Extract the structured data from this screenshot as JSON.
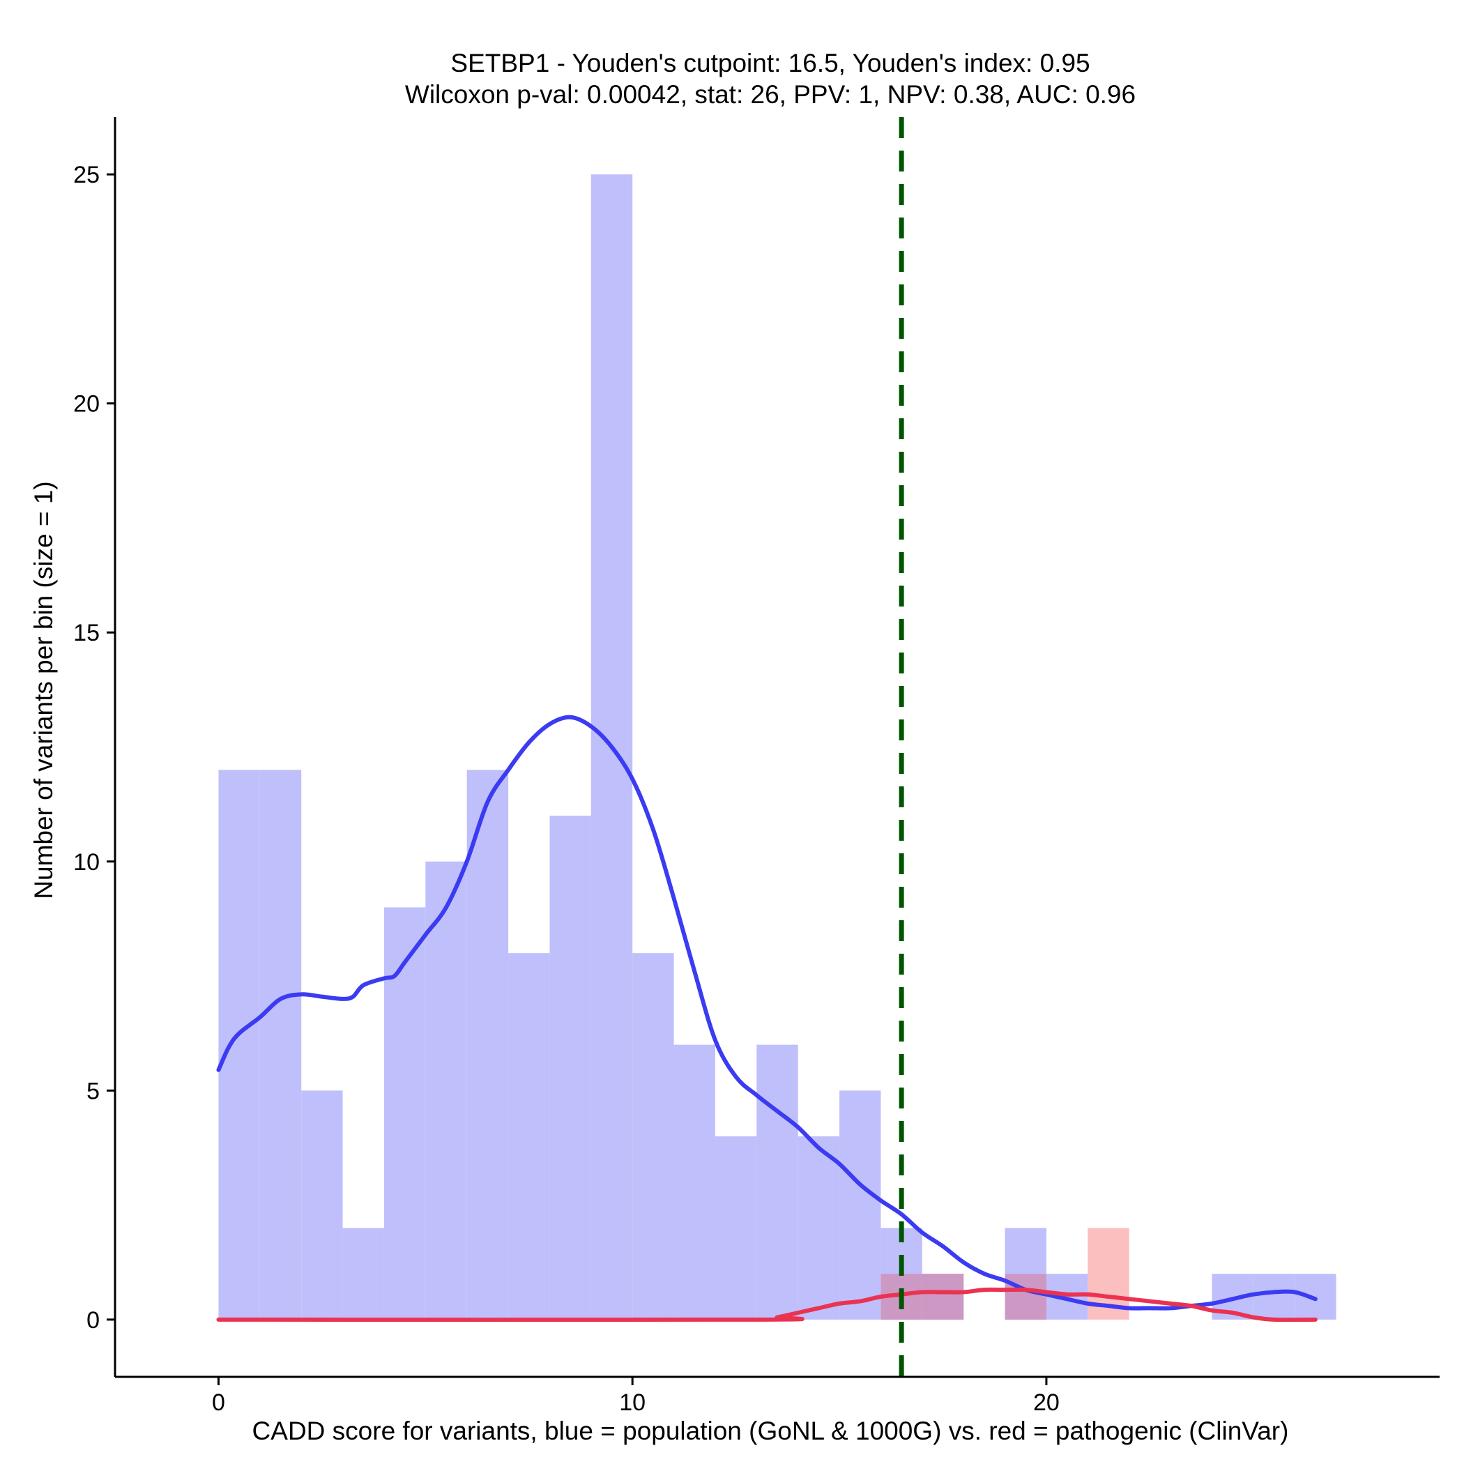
{
  "chart_data": {
    "type": "histogram",
    "title_line1": "SETBP1 - Youden's cutpoint: 16.5, Youden's index: 0.95",
    "title_line2": "Wilcoxon p-val: 0.00042, stat: 26, PPV: 1, NPV: 0.38, AUC: 0.96",
    "xlabel": "CADD score for variants, blue = population (GoNL & 1000G) vs. red = pathogenic (ClinVar)",
    "ylabel": "Number of variants per bin (size = 1)",
    "xlim": [
      -2.5,
      29.5
    ],
    "ylim": [
      -1.25,
      26.25
    ],
    "x_ticks": [
      0,
      10,
      20
    ],
    "x_tick_labels": [
      "0",
      "10",
      "20"
    ],
    "y_ticks": [
      0,
      5,
      10,
      15,
      20,
      25
    ],
    "y_tick_labels": [
      "0",
      "5",
      "10",
      "15",
      "20",
      "25"
    ],
    "bin_width": 1,
    "cutpoint": 16.5,
    "colors": {
      "population_bar": "#bfbffc",
      "pathogenic_bar": "#fcbfbf",
      "overlap_bar": "#cc99c4",
      "population_line": "#3b3bf2",
      "pathogenic_line": "#ea3350",
      "cutpoint_line": "#005500"
    },
    "series": [
      {
        "name": "population (GoNL & 1000G)",
        "bins": [
          {
            "x0": 0,
            "count": 12
          },
          {
            "x0": 1,
            "count": 12
          },
          {
            "x0": 2,
            "count": 5
          },
          {
            "x0": 3,
            "count": 2
          },
          {
            "x0": 4,
            "count": 9
          },
          {
            "x0": 5,
            "count": 10
          },
          {
            "x0": 6,
            "count": 12
          },
          {
            "x0": 7,
            "count": 8
          },
          {
            "x0": 8,
            "count": 11
          },
          {
            "x0": 9,
            "count": 25
          },
          {
            "x0": 10,
            "count": 8
          },
          {
            "x0": 11,
            "count": 6
          },
          {
            "x0": 12,
            "count": 4
          },
          {
            "x0": 13,
            "count": 6
          },
          {
            "x0": 14,
            "count": 4
          },
          {
            "x0": 15,
            "count": 5
          },
          {
            "x0": 16,
            "count": 2
          },
          {
            "x0": 17,
            "count": 1
          },
          {
            "x0": 19,
            "count": 2
          },
          {
            "x0": 20,
            "count": 1
          },
          {
            "x0": 24,
            "count": 1
          },
          {
            "x0": 25,
            "count": 1
          },
          {
            "x0": 26,
            "count": 1
          }
        ],
        "density_curve": [
          [
            0,
            5.45
          ],
          [
            0.25,
            5.95
          ],
          [
            0.5,
            6.25
          ],
          [
            1,
            6.6
          ],
          [
            1.5,
            7.0
          ],
          [
            2,
            7.1
          ],
          [
            2.5,
            7.05
          ],
          [
            3,
            7.0
          ],
          [
            3.25,
            7.05
          ],
          [
            3.5,
            7.3
          ],
          [
            4,
            7.45
          ],
          [
            4.25,
            7.5
          ],
          [
            4.5,
            7.8
          ],
          [
            5,
            8.4
          ],
          [
            5.5,
            9.0
          ],
          [
            6,
            10.0
          ],
          [
            6.5,
            11.3
          ],
          [
            7,
            12.0
          ],
          [
            7.5,
            12.6
          ],
          [
            8,
            13.0
          ],
          [
            8.5,
            13.15
          ],
          [
            9,
            12.95
          ],
          [
            9.5,
            12.5
          ],
          [
            10,
            11.8
          ],
          [
            10.5,
            10.7
          ],
          [
            11,
            9.2
          ],
          [
            11.5,
            7.6
          ],
          [
            12,
            6.1
          ],
          [
            12.5,
            5.3
          ],
          [
            13,
            4.9
          ],
          [
            13.5,
            4.55
          ],
          [
            14,
            4.2
          ],
          [
            14.5,
            3.75
          ],
          [
            15,
            3.4
          ],
          [
            15.5,
            2.95
          ],
          [
            16,
            2.6
          ],
          [
            16.5,
            2.3
          ],
          [
            17,
            1.9
          ],
          [
            17.5,
            1.6
          ],
          [
            18,
            1.25
          ],
          [
            18.5,
            1.0
          ],
          [
            19,
            0.85
          ],
          [
            19.5,
            0.65
          ],
          [
            20,
            0.55
          ],
          [
            20.5,
            0.45
          ],
          [
            21,
            0.35
          ],
          [
            21.5,
            0.3
          ],
          [
            22,
            0.25
          ],
          [
            22.5,
            0.25
          ],
          [
            23,
            0.25
          ],
          [
            23.5,
            0.3
          ],
          [
            24,
            0.35
          ],
          [
            24.5,
            0.45
          ],
          [
            25,
            0.55
          ],
          [
            25.5,
            0.6
          ],
          [
            26,
            0.6
          ],
          [
            26.5,
            0.45
          ]
        ]
      },
      {
        "name": "pathogenic (ClinVar)",
        "bins": [
          {
            "x0": 16,
            "count": 1
          },
          {
            "x0": 17,
            "count": 1
          },
          {
            "x0": 19,
            "count": 1
          },
          {
            "x0": 21,
            "count": 2
          }
        ],
        "density_curve": [
          [
            0,
            0
          ],
          [
            13,
            0
          ],
          [
            13.5,
            0.05
          ],
          [
            14,
            0.15
          ],
          [
            14.5,
            0.25
          ],
          [
            15,
            0.35
          ],
          [
            15.5,
            0.4
          ],
          [
            16,
            0.5
          ],
          [
            16.5,
            0.55
          ],
          [
            17,
            0.6
          ],
          [
            17.5,
            0.6
          ],
          [
            18,
            0.6
          ],
          [
            18.5,
            0.65
          ],
          [
            19,
            0.65
          ],
          [
            19.5,
            0.65
          ],
          [
            20,
            0.6
          ],
          [
            20.5,
            0.55
          ],
          [
            21,
            0.55
          ],
          [
            21.5,
            0.5
          ],
          [
            22,
            0.45
          ],
          [
            22.5,
            0.4
          ],
          [
            23,
            0.35
          ],
          [
            23.5,
            0.3
          ],
          [
            24,
            0.2
          ],
          [
            24.5,
            0.15
          ],
          [
            25,
            0.05
          ],
          [
            25.5,
            0
          ],
          [
            26.5,
            0
          ]
        ]
      }
    ]
  }
}
